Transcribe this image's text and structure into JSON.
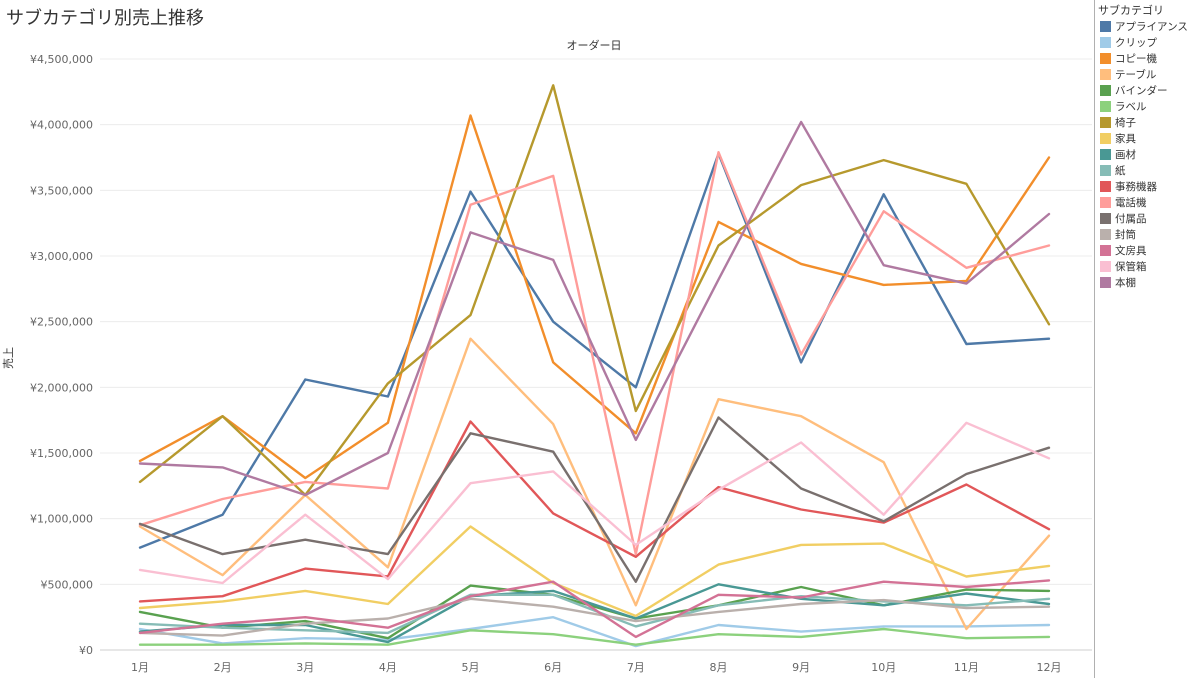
{
  "chart_data": {
    "type": "line",
    "title": "サブカテゴリ別売上推移",
    "xlabel": "オーダー日",
    "ylabel": "売上",
    "categories": [
      "1月",
      "2月",
      "3月",
      "4月",
      "5月",
      "6月",
      "7月",
      "8月",
      "9月",
      "10月",
      "11月",
      "12月"
    ],
    "ylim": [
      0,
      4500000
    ],
    "yticks": [
      0,
      500000,
      1000000,
      1500000,
      2000000,
      2500000,
      3000000,
      3500000,
      4000000,
      4500000
    ],
    "ytick_labels": [
      "¥0",
      "¥500,000",
      "¥1,000,000",
      "¥1,500,000",
      "¥2,000,000",
      "¥2,500,000",
      "¥3,000,000",
      "¥3,500,000",
      "¥4,000,000",
      "¥4,500,000"
    ],
    "grid": true,
    "legend": {
      "title": "サブカテゴリ",
      "position": "right"
    },
    "series": [
      {
        "name": "アプライアンス",
        "color": "#4e79a7",
        "values": [
          780000,
          1030000,
          2060000,
          1930000,
          3490000,
          2500000,
          2000000,
          3780000,
          2190000,
          3470000,
          2330000,
          2370000
        ]
      },
      {
        "name": "クリップ",
        "color": "#a0cbe8",
        "values": [
          160000,
          50000,
          90000,
          80000,
          160000,
          250000,
          30000,
          190000,
          140000,
          180000,
          180000,
          190000
        ]
      },
      {
        "name": "コピー機",
        "color": "#f28e2b",
        "values": [
          1440000,
          1780000,
          1310000,
          1730000,
          4070000,
          2190000,
          1650000,
          3260000,
          2940000,
          2780000,
          2810000,
          3750000
        ]
      },
      {
        "name": "テーブル",
        "color": "#ffbe7d",
        "values": [
          940000,
          570000,
          1180000,
          630000,
          2370000,
          1720000,
          340000,
          1910000,
          1780000,
          1430000,
          160000,
          870000
        ]
      },
      {
        "name": "バインダー",
        "color": "#59a14f",
        "values": [
          290000,
          170000,
          220000,
          90000,
          490000,
          420000,
          240000,
          340000,
          480000,
          340000,
          460000,
          450000
        ]
      },
      {
        "name": "ラベル",
        "color": "#8cd17d",
        "values": [
          40000,
          40000,
          50000,
          40000,
          150000,
          120000,
          40000,
          120000,
          100000,
          160000,
          90000,
          100000
        ]
      },
      {
        "name": "椅子",
        "color": "#b6992d",
        "values": [
          1280000,
          1780000,
          1180000,
          2030000,
          2550000,
          4300000,
          1820000,
          3080000,
          3540000,
          3730000,
          3550000,
          2480000
        ]
      },
      {
        "name": "家具",
        "color": "#f1ce63",
        "values": [
          320000,
          370000,
          450000,
          350000,
          940000,
          510000,
          260000,
          650000,
          800000,
          810000,
          560000,
          640000
        ]
      },
      {
        "name": "画材",
        "color": "#499894",
        "values": [
          140000,
          190000,
          190000,
          60000,
          410000,
          450000,
          240000,
          500000,
          390000,
          340000,
          430000,
          350000
        ]
      },
      {
        "name": "紙",
        "color": "#86bcb6",
        "values": [
          200000,
          170000,
          150000,
          130000,
          420000,
          420000,
          180000,
          340000,
          410000,
          370000,
          340000,
          390000
        ]
      },
      {
        "name": "事務機器",
        "color": "#e15759",
        "values": [
          370000,
          410000,
          620000,
          560000,
          1740000,
          1040000,
          710000,
          1240000,
          1070000,
          970000,
          1260000,
          920000
        ]
      },
      {
        "name": "電話機",
        "color": "#ff9d9a",
        "values": [
          950000,
          1150000,
          1280000,
          1230000,
          3390000,
          3610000,
          730000,
          3790000,
          2250000,
          3340000,
          2910000,
          3080000
        ]
      },
      {
        "name": "付属品",
        "color": "#79706e",
        "values": [
          960000,
          730000,
          840000,
          730000,
          1650000,
          1510000,
          520000,
          1770000,
          1230000,
          980000,
          1340000,
          1540000
        ]
      },
      {
        "name": "封筒",
        "color": "#bab0ac",
        "values": [
          130000,
          110000,
          200000,
          240000,
          390000,
          330000,
          220000,
          290000,
          350000,
          380000,
          320000,
          330000
        ]
      },
      {
        "name": "文房具",
        "color": "#d37295",
        "values": [
          130000,
          200000,
          250000,
          170000,
          410000,
          520000,
          100000,
          420000,
          400000,
          520000,
          480000,
          530000
        ]
      },
      {
        "name": "保管箱",
        "color": "#fabfd2",
        "values": [
          610000,
          510000,
          1030000,
          540000,
          1270000,
          1360000,
          800000,
          1220000,
          1580000,
          1030000,
          1730000,
          1460000
        ]
      },
      {
        "name": "本棚",
        "color": "#b07aa1",
        "values": [
          1420000,
          1390000,
          1180000,
          1500000,
          3180000,
          2970000,
          1600000,
          2820000,
          4020000,
          2930000,
          2790000,
          3320000
        ]
      }
    ]
  }
}
